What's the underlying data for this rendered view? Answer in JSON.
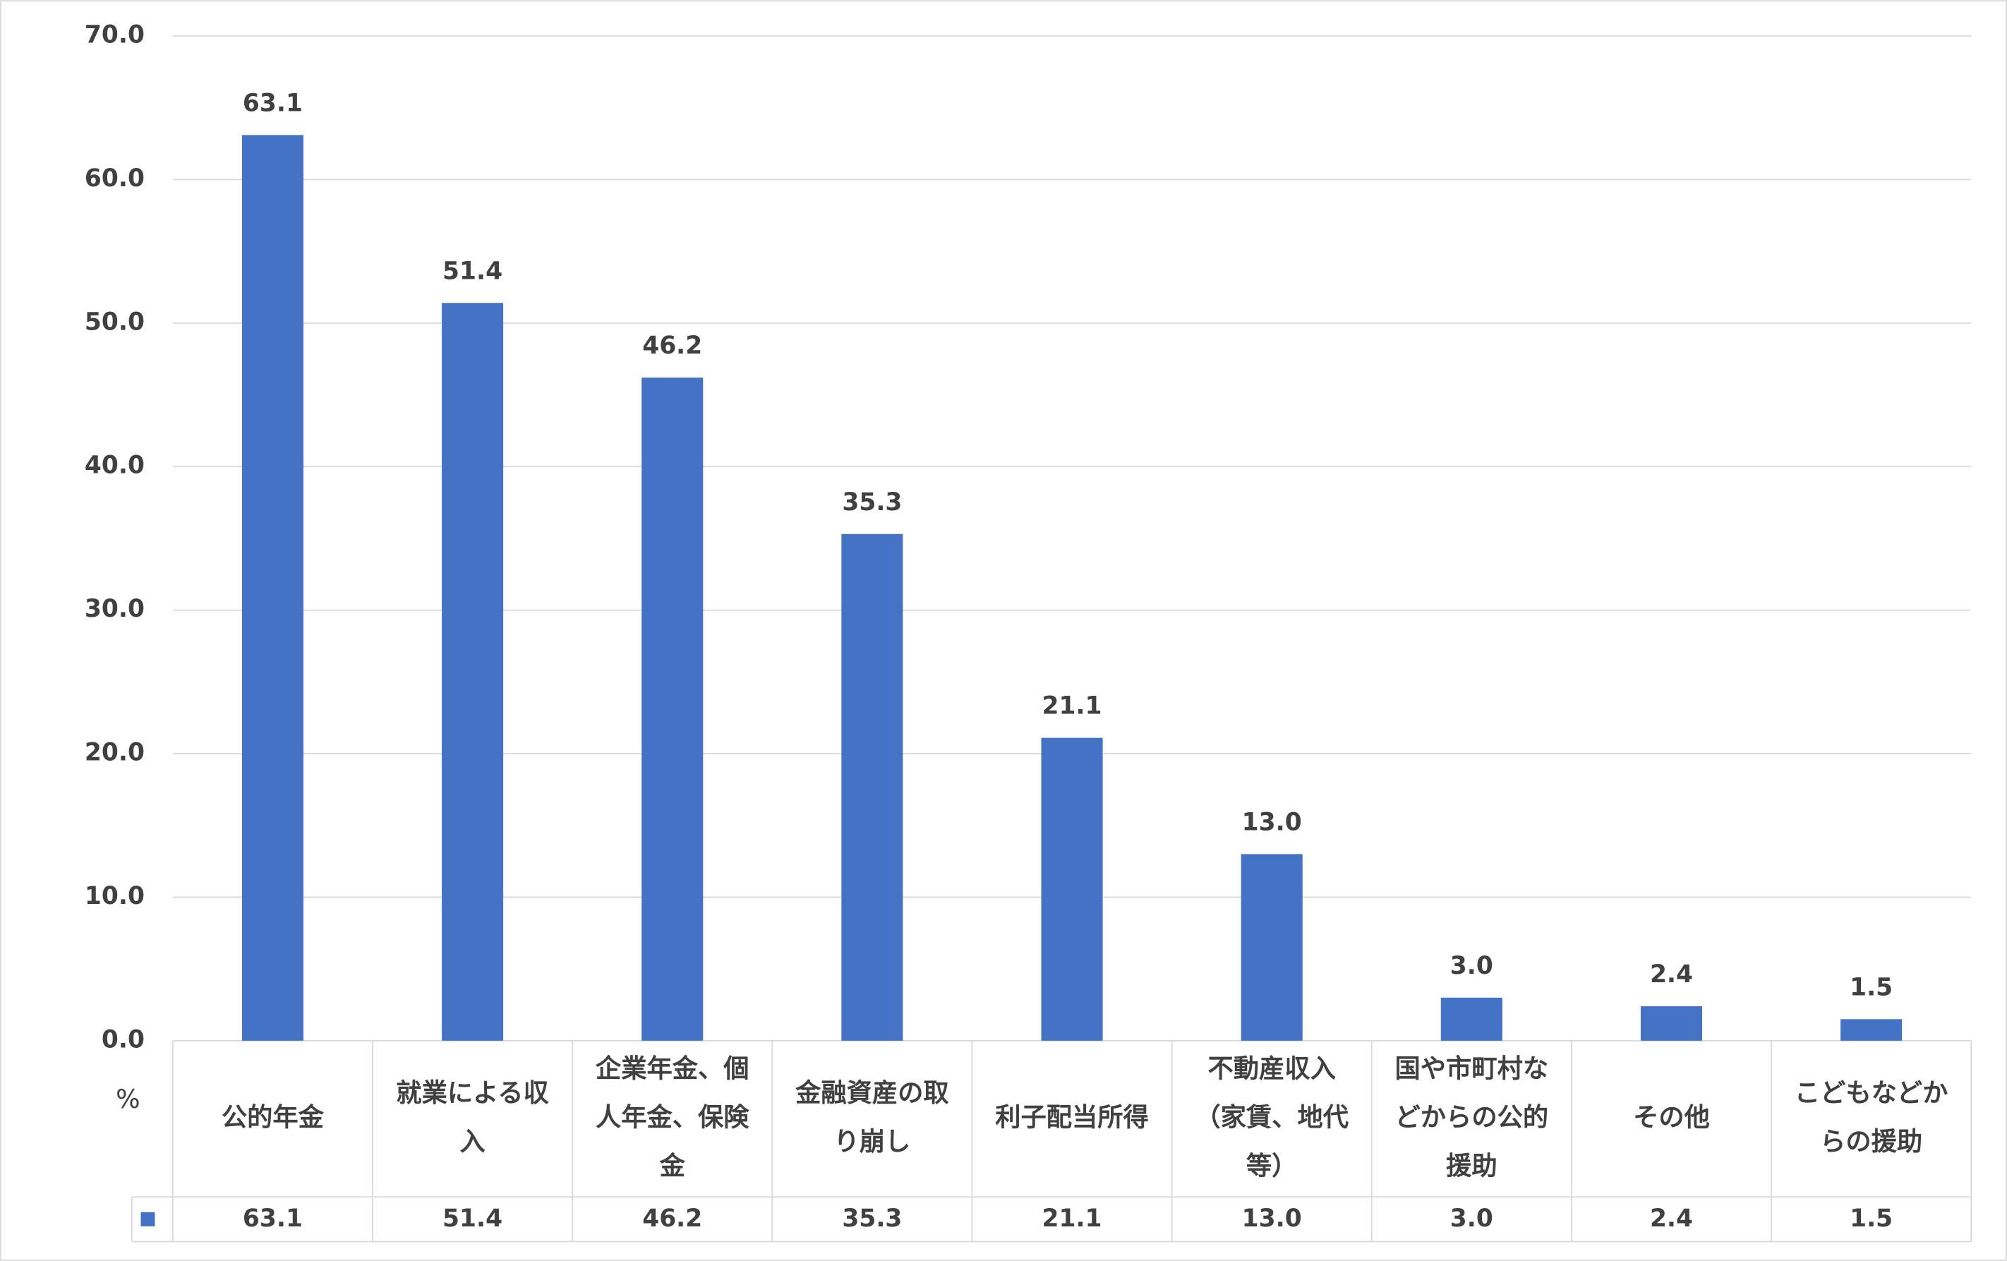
{
  "chart_data": {
    "type": "bar",
    "y_unit": "%",
    "categories": [
      "公的年金",
      "就業による収入",
      "企業年金、個人年金、保険金",
      "金融資産の取り崩し",
      "利子配当所得",
      "不動産収入（家賃、地代等）",
      "国や市町村などからの公的援助",
      "その他",
      "こどもなどからの援助"
    ],
    "values": [
      63.1,
      51.4,
      46.2,
      35.3,
      21.1,
      13.0,
      3.0,
      2.4,
      1.5
    ],
    "value_labels": [
      "63.1",
      "51.4",
      "46.2",
      "35.3",
      "21.1",
      "13.0",
      "3.0",
      "2.4",
      "1.5"
    ],
    "color": "#4472c4",
    "ylim": [
      0,
      70
    ],
    "yticks": [
      {
        "value": 0,
        "label": "0.0"
      },
      {
        "value": 10,
        "label": "10.0"
      },
      {
        "value": 20,
        "label": "20.0"
      },
      {
        "value": 30,
        "label": "30.0"
      },
      {
        "value": 40,
        "label": "40.0"
      },
      {
        "value": 50,
        "label": "50.0"
      },
      {
        "value": 60,
        "label": "60.0"
      },
      {
        "value": 70,
        "label": "70.0"
      }
    ],
    "grid": true
  }
}
